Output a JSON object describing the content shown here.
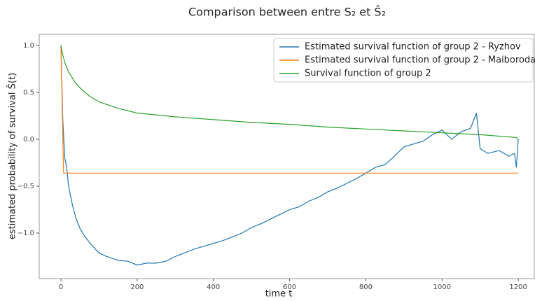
{
  "chart_data": {
    "type": "line",
    "title": "Comparison between entre S₂ et Ŝ₂",
    "x_label": "time t",
    "y_label": "estimated probability of survival Ŝ(t)",
    "xlim": [
      -57,
      1242
    ],
    "ylim": [
      -1.485,
      1.12
    ],
    "xticks": [
      0,
      200,
      400,
      600,
      800,
      1000,
      1200
    ],
    "yticks": [
      {
        "value": 1.0,
        "label": "1.0"
      },
      {
        "value": 0.5,
        "label": "0.5"
      },
      {
        "value": 0.0,
        "label": "0.0"
      },
      {
        "value": -0.5,
        "label": "−0.5"
      },
      {
        "value": -1.0,
        "label": "−1.0"
      }
    ],
    "legend": "upper right",
    "series": [
      {
        "name": "Estimated survival function of group 2 - Ryzhov",
        "color": "#1f77b4",
        "x": [
          0,
          5,
          10,
          15,
          20,
          30,
          40,
          50,
          60,
          75,
          90,
          100,
          120,
          150,
          175,
          200,
          225,
          250,
          275,
          300,
          325,
          350,
          375,
          400,
          425,
          450,
          475,
          500,
          525,
          550,
          575,
          600,
          625,
          650,
          675,
          700,
          725,
          750,
          775,
          800,
          825,
          850,
          875,
          900,
          925,
          950,
          975,
          1000,
          1025,
          1050,
          1075,
          1090,
          1100,
          1120,
          1150,
          1175,
          1190,
          1195,
          1200
        ],
        "values": [
          1.0,
          0.2,
          -0.2,
          -0.3,
          -0.5,
          -0.7,
          -0.85,
          -0.95,
          -1.02,
          -1.1,
          -1.17,
          -1.21,
          -1.25,
          -1.29,
          -1.3,
          -1.34,
          -1.32,
          -1.32,
          -1.3,
          -1.25,
          -1.21,
          -1.17,
          -1.14,
          -1.11,
          -1.08,
          -1.04,
          -1.0,
          -0.94,
          -0.9,
          -0.85,
          -0.8,
          -0.75,
          -0.72,
          -0.66,
          -0.62,
          -0.56,
          -0.52,
          -0.47,
          -0.42,
          -0.36,
          -0.3,
          -0.27,
          -0.18,
          -0.08,
          -0.05,
          -0.02,
          0.05,
          0.1,
          0.0,
          0.08,
          0.12,
          0.28,
          -0.1,
          -0.15,
          -0.12,
          -0.18,
          -0.15,
          -0.3,
          0.0
        ]
      },
      {
        "name": "Estimated survival function of group 2 - Maiboroda",
        "color": "#ff7f0e",
        "x": [
          0,
          7,
          1200
        ],
        "values": [
          1.0,
          -0.36,
          -0.36
        ]
      },
      {
        "name": "Survival function of group 2",
        "color": "#2ca02c",
        "x": [
          0,
          5,
          10,
          20,
          35,
          50,
          75,
          100,
          150,
          200,
          300,
          400,
          500,
          600,
          700,
          800,
          900,
          1000,
          1100,
          1195,
          1200
        ],
        "values": [
          1.0,
          0.9,
          0.82,
          0.72,
          0.62,
          0.55,
          0.46,
          0.4,
          0.33,
          0.28,
          0.24,
          0.21,
          0.18,
          0.16,
          0.13,
          0.11,
          0.09,
          0.07,
          0.05,
          0.02,
          0.0
        ]
      }
    ]
  }
}
